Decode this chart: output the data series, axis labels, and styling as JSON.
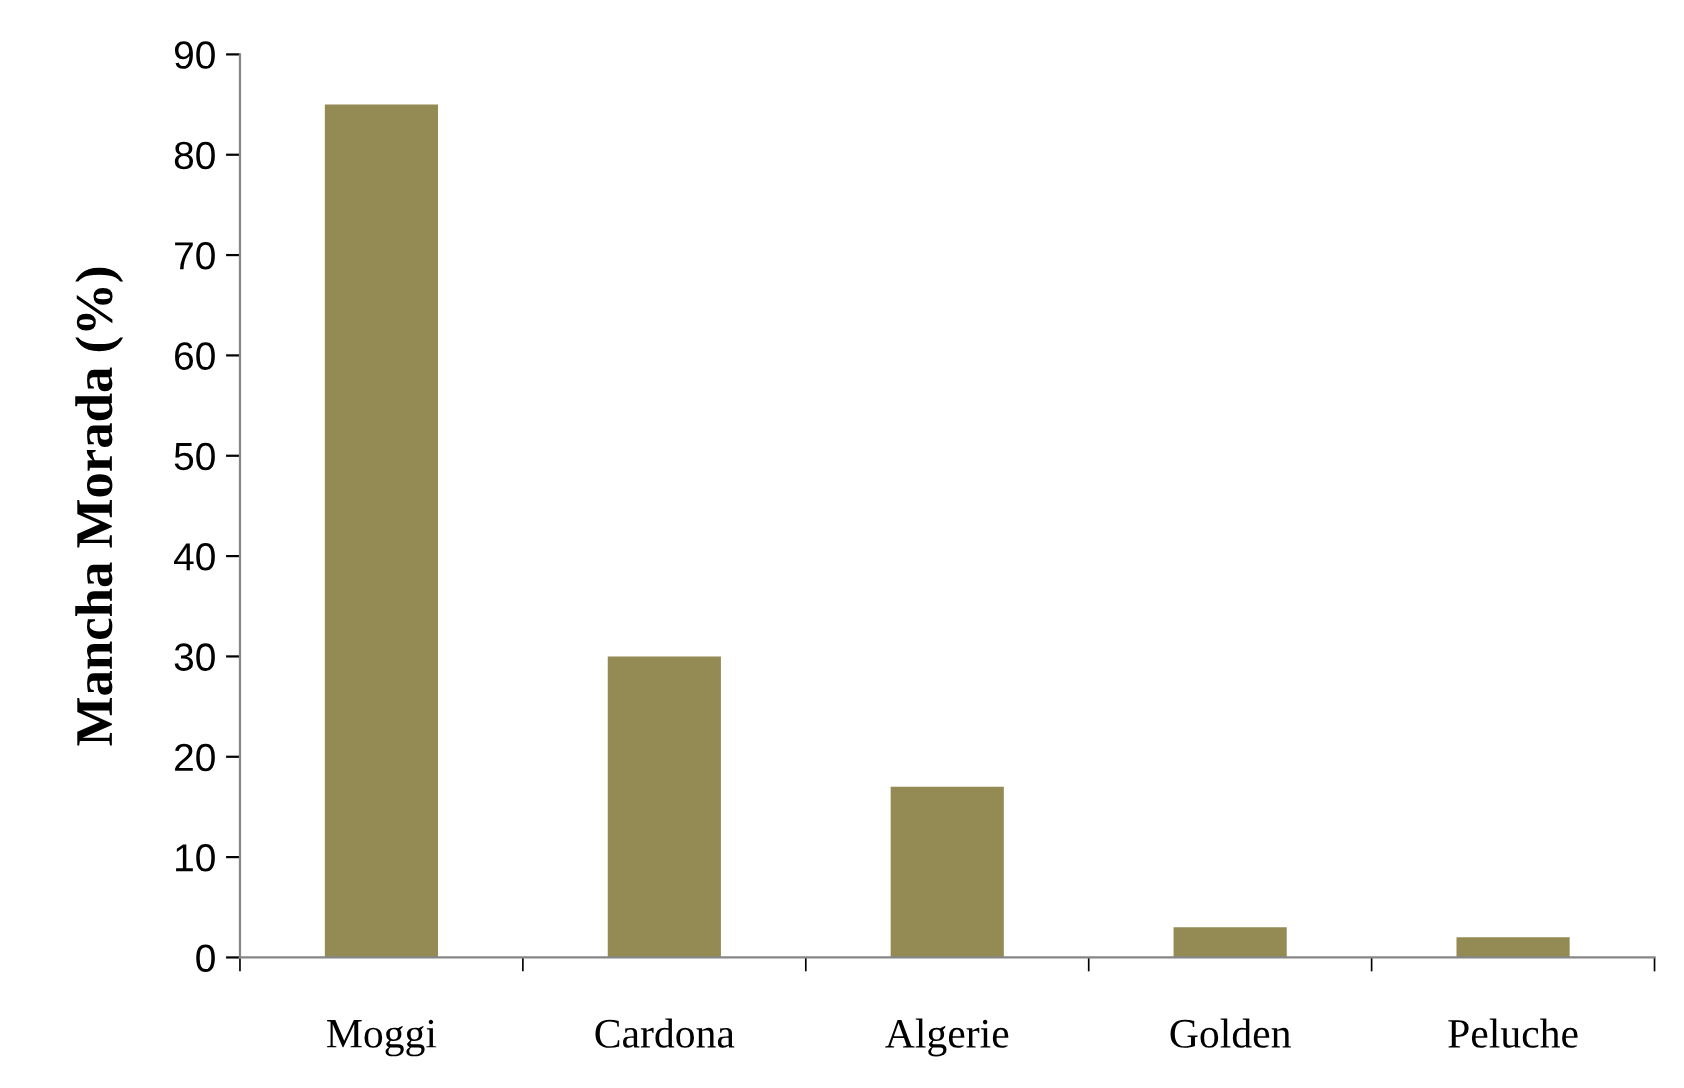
{
  "chart_data": {
    "type": "bar",
    "ylabel": "Mancha Morada (%)",
    "categories": [
      "Moggi",
      "Cardona",
      "Algerie",
      "Golden",
      "Peluche"
    ],
    "values": [
      85,
      30,
      17,
      3,
      2
    ],
    "color": "#948a54",
    "ylim": [
      0,
      90
    ],
    "yticks": [
      0,
      10,
      20,
      30,
      40,
      50,
      60,
      70,
      80,
      90
    ],
    "grid": false,
    "legend": false
  }
}
